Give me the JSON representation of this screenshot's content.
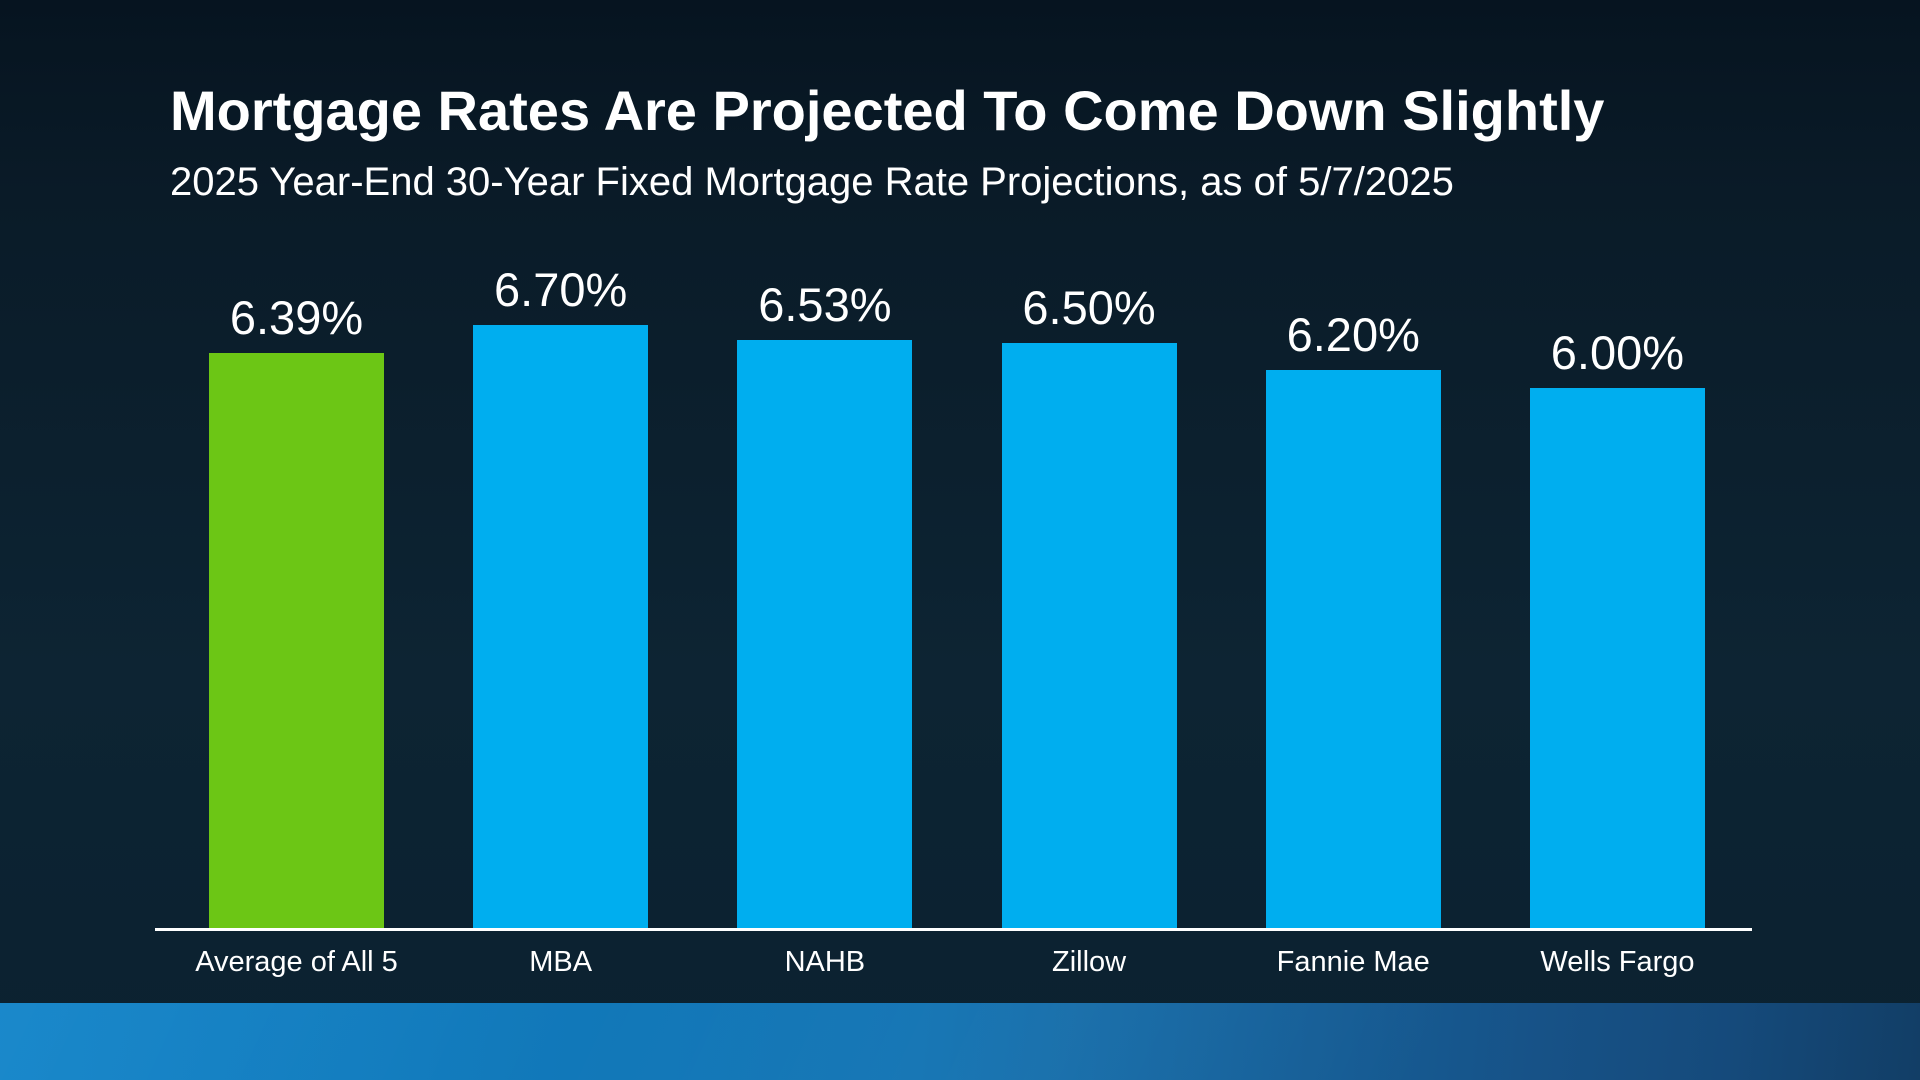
{
  "header": {
    "title": "Mortgage Rates Are Projected To Come Down Slightly",
    "subtitle": "2025 Year-End 30-Year Fixed Mortgage Rate Projections, as of 5/7/2025"
  },
  "chart_data": {
    "type": "bar",
    "title": "Mortgage Rates Are Projected To Come Down Slightly",
    "subtitle": "2025 Year-End 30-Year Fixed Mortgage Rate Projections, as of 5/7/2025",
    "categories": [
      "Average of All 5",
      "MBA",
      "NAHB",
      "Zillow",
      "Fannie Mae",
      "Wells Fargo"
    ],
    "values": [
      6.39,
      6.7,
      6.53,
      6.5,
      6.2,
      6.0
    ],
    "value_labels": [
      "6.39%",
      "6.70%",
      "6.53%",
      "6.50%",
      "6.20%",
      "6.00%"
    ],
    "bar_colors": [
      "#6CC615",
      "#00AEEF",
      "#00AEEF",
      "#00AEEF",
      "#00AEEF",
      "#00AEEF"
    ],
    "xlabel": "",
    "ylabel": "",
    "ylim": [
      0,
      6.7
    ],
    "grid": false,
    "legend_position": "none",
    "value_label_position": "above-bar",
    "axis_line_color": "#FFFFFF"
  },
  "colors": {
    "background_top": "#071520",
    "background_bottom": "#0C2433",
    "text": "#FFFFFF",
    "highlight_green": "#6CC615",
    "bar_blue": "#00AEEF",
    "footer_band_left": "#0E82C8",
    "footer_band_right": "#123E66"
  }
}
